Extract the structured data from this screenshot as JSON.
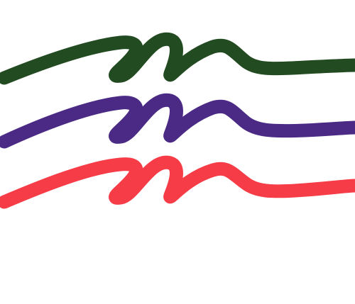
{
  "logo": {
    "description_name": "three-wave-marks",
    "waves": [
      {
        "name": "green-wave",
        "color": "#234B21"
      },
      {
        "name": "purple-wave",
        "color": "#4B2A85"
      },
      {
        "name": "red-wave",
        "color": "#F63C47"
      }
    ]
  }
}
